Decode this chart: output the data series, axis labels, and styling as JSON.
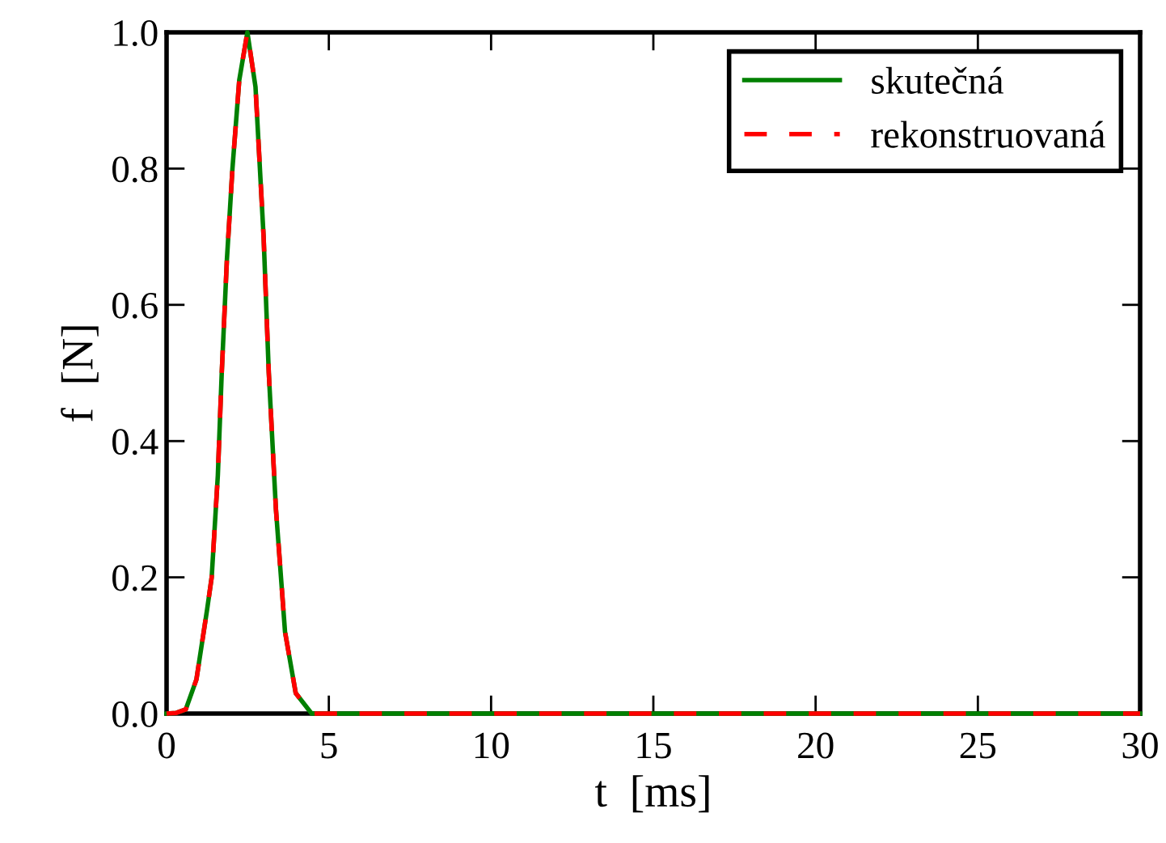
{
  "chart_data": {
    "type": "line",
    "xlabel": "t  [ms]",
    "ylabel": "f  [N]",
    "x": [
      0,
      0.3,
      0.59,
      0.92,
      1.25,
      1.39,
      1.58,
      1.7,
      1.86,
      2.03,
      2.24,
      2.49,
      2.74,
      2.99,
      3.15,
      3.37,
      3.65,
      3.98,
      4.47,
      5,
      10,
      15,
      20,
      25,
      30
    ],
    "series": [
      {
        "name": "skutečná",
        "color": "#008000",
        "line_style": "solid",
        "values": [
          0,
          0.001,
          0.006,
          0.05,
          0.153,
          0.2,
          0.35,
          0.5,
          0.667,
          0.8,
          0.93,
          1.0,
          0.92,
          0.7,
          0.5,
          0.3,
          0.12,
          0.03,
          0,
          0,
          0,
          0,
          0,
          0,
          0
        ]
      },
      {
        "name": "rekonstruovaná",
        "color": "#ff0000",
        "line_style": "dashed",
        "values": [
          0,
          0.001,
          0.006,
          0.05,
          0.153,
          0.2,
          0.35,
          0.5,
          0.667,
          0.8,
          0.93,
          1.0,
          0.92,
          0.7,
          0.5,
          0.3,
          0.12,
          0.03,
          0,
          0,
          0,
          0,
          0,
          0,
          0
        ]
      }
    ],
    "xlim": [
      0,
      30
    ],
    "xticks": [
      0,
      5,
      10,
      15,
      20,
      25,
      30
    ],
    "ylim": [
      0,
      1.0
    ],
    "yticks": [
      {
        "value": 0,
        "label": "0.0"
      },
      {
        "value": 0.2,
        "label": "0.2"
      },
      {
        "value": 0.4,
        "label": "0.4"
      },
      {
        "value": 0.6,
        "label": "0.6"
      },
      {
        "value": 0.8,
        "label": "0.8"
      },
      {
        "value": 1.0,
        "label": "1.0"
      }
    ],
    "legend": "top right",
    "grid": false
  }
}
